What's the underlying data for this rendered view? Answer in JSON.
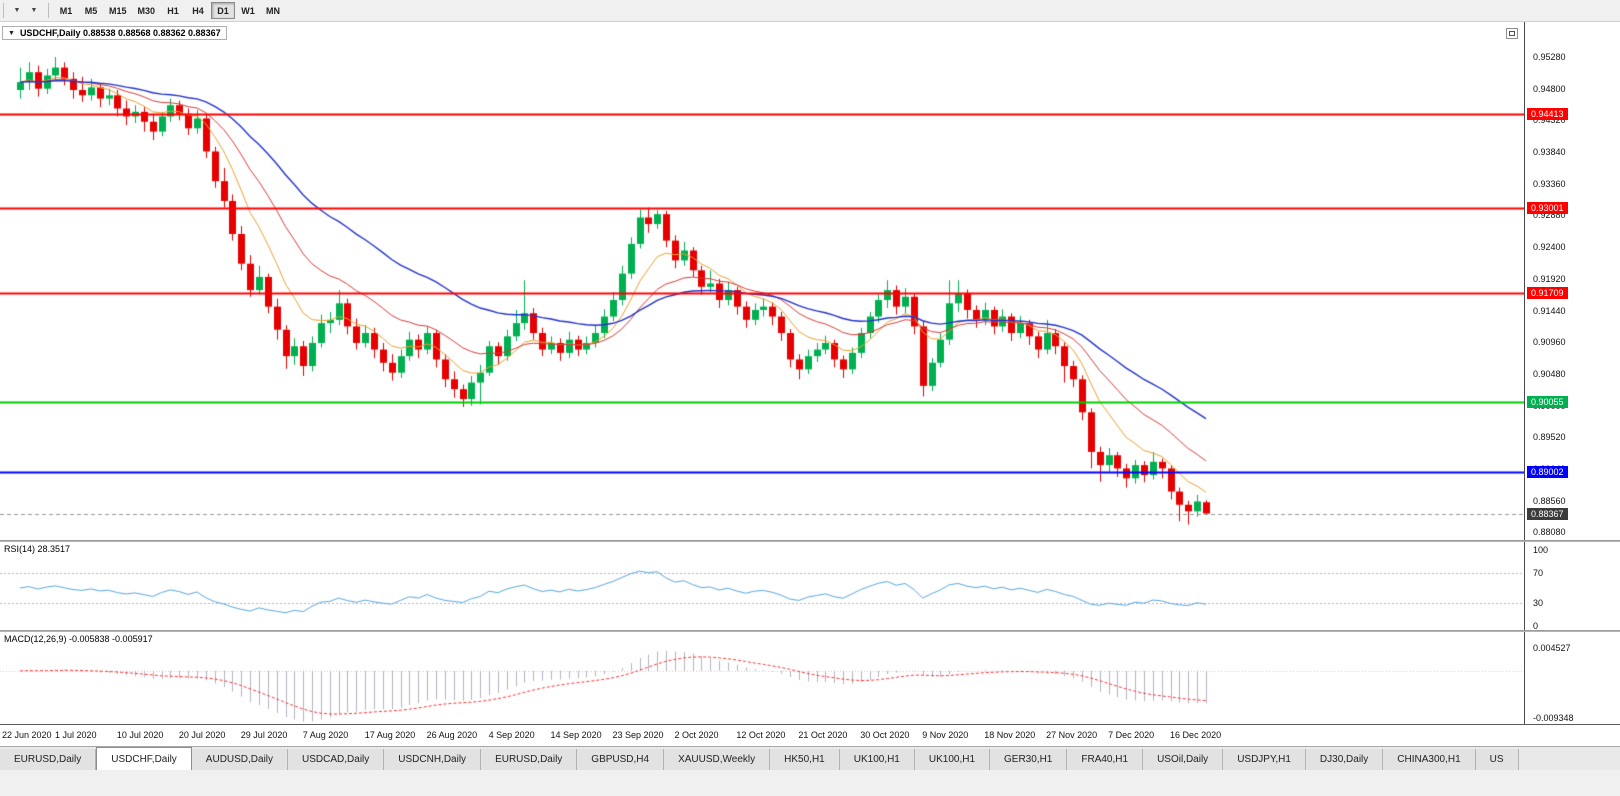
{
  "toolbar": {
    "left_icons": [
      {
        "name": "chart-scroll-icon",
        "glyph": "▼"
      },
      {
        "name": "chart-shift-icon",
        "glyph": "▼"
      }
    ],
    "timeframes": [
      "M1",
      "M5",
      "M15",
      "M30",
      "H1",
      "H4",
      "D1",
      "W1",
      "MN"
    ],
    "active_timeframe": "D1"
  },
  "chart": {
    "one_click_glyph": "▼",
    "title": "USDCHF,Daily 0.88538 0.88568 0.88362 0.88367",
    "symbol": "USDCHF",
    "period": "Daily",
    "ohlc": {
      "open": "0.88538",
      "high": "0.88568",
      "low": "0.88362",
      "close": "0.88367"
    }
  },
  "price_axis": {
    "labels": [
      "0.95280",
      "0.94800",
      "0.94320",
      "0.93840",
      "0.93360",
      "0.92880",
      "0.92400",
      "0.91920",
      "0.91440",
      "0.90960",
      "0.90480",
      "0.90000",
      "0.89520",
      "0.89040",
      "0.88560",
      "0.88080"
    ]
  },
  "price_tags": [
    {
      "name": "resistance-tag-1",
      "text": "0.94413",
      "value": 0.94413,
      "bg": "#ff0000",
      "fg": "#ffffff"
    },
    {
      "name": "resistance-tag-2",
      "text": "0.93001",
      "value": 0.93001,
      "bg": "#ff0000",
      "fg": "#ffffff"
    },
    {
      "name": "resistance-tag-3",
      "text": "0.91709",
      "value": 0.91709,
      "bg": "#ff0000",
      "fg": "#ffffff"
    },
    {
      "name": "support-tag-green",
      "text": "0.90055",
      "value": 0.90055,
      "bg": "#00b050",
      "fg": "#ffffff"
    },
    {
      "name": "support-tag-blue",
      "text": "0.89002",
      "value": 0.89002,
      "bg": "#0000ff",
      "fg": "#ffffff"
    },
    {
      "name": "current-price-tag",
      "text": "0.88367",
      "value": 0.88367,
      "bg": "#3c3c3c",
      "fg": "#ffffff"
    }
  ],
  "hlines": [
    {
      "value": 0.94413,
      "color": "#ff0000",
      "width": 2
    },
    {
      "value": 0.93001,
      "color": "#ff0000",
      "width": 2
    },
    {
      "value": 0.91709,
      "color": "#ff0000",
      "width": 2
    },
    {
      "value": 0.90055,
      "color": "#00cc00",
      "width": 2
    },
    {
      "value": 0.89002,
      "color": "#0000ff",
      "width": 2
    }
  ],
  "current_price": {
    "value": 0.88367,
    "line_color": "#9a9a9a"
  },
  "indicators": {
    "rsi": {
      "label": "RSI(14) 28.3517",
      "value": 28.3517,
      "period": 14,
      "levels": [
        "100",
        "70",
        "30",
        "0"
      ],
      "dashed_levels": [
        70,
        30
      ],
      "line_color": "#58a6dd"
    },
    "macd": {
      "label": "MACD(12,26,9) -0.005838 -0.005917",
      "macd_value": -0.005838,
      "signal_value": -0.005917,
      "fast": 12,
      "slow": 26,
      "signal": 9,
      "scale_top": "0.004527",
      "scale_bottom": "-0.009348",
      "histogram_color": "#b3b3c3",
      "signal_color": "#ff3333"
    }
  },
  "date_axis": {
    "labels": [
      "22 Jun 2020",
      "1 Jul 2020",
      "10 Jul 2020",
      "20 Jul 2020",
      "29 Jul 2020",
      "7 Aug 2020",
      "17 Aug 2020",
      "26 Aug 2020",
      "4 Sep 2020",
      "14 Sep 2020",
      "23 Sep 2020",
      "2 Oct 2020",
      "12 Oct 2020",
      "21 Oct 2020",
      "30 Oct 2020",
      "9 Nov 2020",
      "18 Nov 2020",
      "27 Nov 2020",
      "7 Dec 2020",
      "16 Dec 2020"
    ]
  },
  "chart_data": {
    "type": "candlestick",
    "symbol": "USDCHF",
    "timeframe": "Daily",
    "ylim": [
      0.8808,
      0.9528
    ],
    "bars_per_label": 7,
    "up_color": "#00b050",
    "down_color": "#e60000",
    "ma_lines": [
      {
        "name": "MA-fast-orange",
        "period": 8,
        "method": "ema",
        "color": "#e8a030",
        "width": 1
      },
      {
        "name": "MA-medium-red",
        "period": 17,
        "method": "ema",
        "color": "#d93a3a",
        "width": 1
      },
      {
        "name": "MA-slow-blue",
        "period": 34,
        "method": "ema",
        "color": "#2233cc",
        "width": 1.4
      }
    ],
    "candles": [
      [
        0.9478,
        0.9512,
        0.9465,
        0.949
      ],
      [
        0.949,
        0.952,
        0.9478,
        0.9505
      ],
      [
        0.9505,
        0.9515,
        0.9468,
        0.948
      ],
      [
        0.948,
        0.951,
        0.9472,
        0.95
      ],
      [
        0.95,
        0.9528,
        0.9492,
        0.9512
      ],
      [
        0.9512,
        0.952,
        0.9485,
        0.9495
      ],
      [
        0.9495,
        0.9505,
        0.9465,
        0.9478
      ],
      [
        0.9478,
        0.9498,
        0.946,
        0.947
      ],
      [
        0.947,
        0.9495,
        0.9462,
        0.9482
      ],
      [
        0.9482,
        0.9488,
        0.9452,
        0.9465
      ],
      [
        0.9465,
        0.948,
        0.9455,
        0.947
      ],
      [
        0.947,
        0.9478,
        0.9438,
        0.945
      ],
      [
        0.945,
        0.9462,
        0.9425,
        0.9438
      ],
      [
        0.9438,
        0.9455,
        0.9428,
        0.9445
      ],
      [
        0.9445,
        0.9452,
        0.9415,
        0.943
      ],
      [
        0.943,
        0.9442,
        0.9402,
        0.9415
      ],
      [
        0.9415,
        0.9445,
        0.9408,
        0.9438
      ],
      [
        0.9438,
        0.9465,
        0.943,
        0.9455
      ],
      [
        0.9455,
        0.9462,
        0.9432,
        0.9442
      ],
      [
        0.9442,
        0.945,
        0.941,
        0.942
      ],
      [
        0.942,
        0.9448,
        0.9412,
        0.9435
      ],
      [
        0.9435,
        0.944,
        0.9375,
        0.9385
      ],
      [
        0.9385,
        0.9392,
        0.933,
        0.934
      ],
      [
        0.934,
        0.936,
        0.93,
        0.931
      ],
      [
        0.931,
        0.932,
        0.925,
        0.926
      ],
      [
        0.926,
        0.9272,
        0.9205,
        0.9215
      ],
      [
        0.9215,
        0.9228,
        0.9165,
        0.9175
      ],
      [
        0.9175,
        0.9212,
        0.9168,
        0.9195
      ],
      [
        0.9195,
        0.92,
        0.914,
        0.915
      ],
      [
        0.915,
        0.9162,
        0.91,
        0.9115
      ],
      [
        0.9115,
        0.9122,
        0.9056,
        0.9075
      ],
      [
        0.9075,
        0.9102,
        0.9062,
        0.909
      ],
      [
        0.909,
        0.9098,
        0.9045,
        0.906
      ],
      [
        0.906,
        0.9105,
        0.9052,
        0.9095
      ],
      [
        0.9095,
        0.9138,
        0.9088,
        0.9125
      ],
      [
        0.9125,
        0.9142,
        0.911,
        0.913
      ],
      [
        0.913,
        0.9175,
        0.9122,
        0.9155
      ],
      [
        0.9155,
        0.9162,
        0.9108,
        0.912
      ],
      [
        0.912,
        0.9132,
        0.9085,
        0.9095
      ],
      [
        0.9095,
        0.9122,
        0.9088,
        0.911
      ],
      [
        0.911,
        0.9118,
        0.9072,
        0.9085
      ],
      [
        0.9085,
        0.9095,
        0.9052,
        0.9065
      ],
      [
        0.9065,
        0.9078,
        0.9038,
        0.905
      ],
      [
        0.905,
        0.9085,
        0.9042,
        0.9075
      ],
      [
        0.9075,
        0.9112,
        0.9068,
        0.91
      ],
      [
        0.91,
        0.9108,
        0.9072,
        0.9085
      ],
      [
        0.9085,
        0.912,
        0.9078,
        0.911
      ],
      [
        0.911,
        0.9115,
        0.9058,
        0.907
      ],
      [
        0.907,
        0.9078,
        0.9028,
        0.904
      ],
      [
        0.904,
        0.9052,
        0.9012,
        0.9025
      ],
      [
        0.9025,
        0.9032,
        0.8998,
        0.901
      ],
      [
        0.901,
        0.9045,
        0.9,
        0.9035
      ],
      [
        0.9035,
        0.9062,
        0.9002,
        0.905
      ],
      [
        0.905,
        0.9098,
        0.9045,
        0.909
      ],
      [
        0.909,
        0.9096,
        0.9062,
        0.9075
      ],
      [
        0.9075,
        0.9115,
        0.9068,
        0.9105
      ],
      [
        0.9105,
        0.9145,
        0.9098,
        0.9125
      ],
      [
        0.9125,
        0.919,
        0.9115,
        0.914
      ],
      [
        0.914,
        0.9148,
        0.91,
        0.911
      ],
      [
        0.911,
        0.9118,
        0.9075,
        0.9085
      ],
      [
        0.9085,
        0.9105,
        0.9078,
        0.9095
      ],
      [
        0.9095,
        0.9102,
        0.9068,
        0.908
      ],
      [
        0.908,
        0.9112,
        0.9072,
        0.91
      ],
      [
        0.91,
        0.9106,
        0.9075,
        0.9085
      ],
      [
        0.9085,
        0.9105,
        0.9078,
        0.9095
      ],
      [
        0.9095,
        0.9122,
        0.9088,
        0.911
      ],
      [
        0.911,
        0.9146,
        0.9102,
        0.9135
      ],
      [
        0.9135,
        0.9172,
        0.9128,
        0.916
      ],
      [
        0.916,
        0.9212,
        0.9152,
        0.92
      ],
      [
        0.92,
        0.9255,
        0.9192,
        0.9245
      ],
      [
        0.9245,
        0.9297,
        0.9238,
        0.9285
      ],
      [
        0.9285,
        0.93,
        0.9262,
        0.9275
      ],
      [
        0.9275,
        0.9296,
        0.9268,
        0.929
      ],
      [
        0.929,
        0.9295,
        0.924,
        0.925
      ],
      [
        0.925,
        0.9258,
        0.9208,
        0.922
      ],
      [
        0.922,
        0.9248,
        0.9212,
        0.9235
      ],
      [
        0.9235,
        0.924,
        0.9195,
        0.9205
      ],
      [
        0.9205,
        0.9212,
        0.9168,
        0.918
      ],
      [
        0.918,
        0.9205,
        0.9172,
        0.9185
      ],
      [
        0.9185,
        0.9192,
        0.9148,
        0.916
      ],
      [
        0.916,
        0.9188,
        0.9152,
        0.9175
      ],
      [
        0.9175,
        0.918,
        0.9138,
        0.915
      ],
      [
        0.915,
        0.9158,
        0.9118,
        0.913
      ],
      [
        0.913,
        0.9155,
        0.9122,
        0.9145
      ],
      [
        0.9145,
        0.9162,
        0.9135,
        0.915
      ],
      [
        0.915,
        0.9156,
        0.9122,
        0.9135
      ],
      [
        0.9135,
        0.9142,
        0.9098,
        0.911
      ],
      [
        0.911,
        0.9116,
        0.9058,
        0.907
      ],
      [
        0.907,
        0.9078,
        0.904,
        0.9055
      ],
      [
        0.9055,
        0.9085,
        0.9048,
        0.9075
      ],
      [
        0.9075,
        0.9095,
        0.9066,
        0.9085
      ],
      [
        0.9085,
        0.9106,
        0.9078,
        0.9095
      ],
      [
        0.9095,
        0.91,
        0.9058,
        0.907
      ],
      [
        0.907,
        0.9076,
        0.9042,
        0.9055
      ],
      [
        0.9055,
        0.9088,
        0.9048,
        0.908
      ],
      [
        0.908,
        0.9118,
        0.9072,
        0.911
      ],
      [
        0.911,
        0.9142,
        0.9102,
        0.9135
      ],
      [
        0.9135,
        0.9168,
        0.9126,
        0.916
      ],
      [
        0.916,
        0.919,
        0.9148,
        0.9175
      ],
      [
        0.9175,
        0.9182,
        0.9138,
        0.915
      ],
      [
        0.915,
        0.9178,
        0.914,
        0.9165
      ],
      [
        0.9165,
        0.917,
        0.9108,
        0.912
      ],
      [
        0.912,
        0.9128,
        0.9014,
        0.903
      ],
      [
        0.903,
        0.9072,
        0.9022,
        0.9065
      ],
      [
        0.9065,
        0.911,
        0.9058,
        0.91
      ],
      [
        0.91,
        0.919,
        0.9092,
        0.9155
      ],
      [
        0.9155,
        0.919,
        0.9142,
        0.917
      ],
      [
        0.917,
        0.9176,
        0.9132,
        0.9145
      ],
      [
        0.9145,
        0.9152,
        0.9118,
        0.913
      ],
      [
        0.913,
        0.9156,
        0.9122,
        0.9145
      ],
      [
        0.9145,
        0.915,
        0.9108,
        0.912
      ],
      [
        0.912,
        0.9146,
        0.9112,
        0.9135
      ],
      [
        0.9135,
        0.914,
        0.9098,
        0.911
      ],
      [
        0.911,
        0.9136,
        0.9102,
        0.9125
      ],
      [
        0.9125,
        0.913,
        0.9092,
        0.9105
      ],
      [
        0.9105,
        0.9112,
        0.9072,
        0.9085
      ],
      [
        0.9085,
        0.913,
        0.9078,
        0.911
      ],
      [
        0.911,
        0.9116,
        0.9078,
        0.909
      ],
      [
        0.909,
        0.9096,
        0.9035,
        0.906
      ],
      [
        0.906,
        0.9068,
        0.9028,
        0.904
      ],
      [
        0.904,
        0.9046,
        0.8978,
        0.899
      ],
      [
        0.899,
        0.8996,
        0.8905,
        0.893
      ],
      [
        0.893,
        0.8938,
        0.8885,
        0.891
      ],
      [
        0.891,
        0.8936,
        0.89,
        0.8925
      ],
      [
        0.8925,
        0.893,
        0.8892,
        0.8905
      ],
      [
        0.8905,
        0.8912,
        0.8876,
        0.889
      ],
      [
        0.889,
        0.8918,
        0.8882,
        0.891
      ],
      [
        0.891,
        0.8916,
        0.8884,
        0.8895
      ],
      [
        0.8895,
        0.893,
        0.8888,
        0.8915
      ],
      [
        0.8915,
        0.892,
        0.889,
        0.8905
      ],
      [
        0.8905,
        0.891,
        0.8858,
        0.887
      ],
      [
        0.887,
        0.8876,
        0.8825,
        0.885
      ],
      [
        0.885,
        0.8856,
        0.882,
        0.884
      ],
      [
        0.884,
        0.8865,
        0.8832,
        0.8855
      ],
      [
        0.88538,
        0.88568,
        0.88362,
        0.88367
      ]
    ]
  },
  "bottom_tabs": {
    "active_index": 1,
    "tabs": [
      "EURUSD,Daily",
      "USDCHF,Daily",
      "AUDUSD,Daily",
      "USDCAD,Daily",
      "USDCNH,Daily",
      "EURUSD,Daily",
      "GBPUSD,H4",
      "XAUUSD,Weekly",
      "HK50,H1",
      "UK100,H1",
      "UK100,H1",
      "GER30,H1",
      "FRA40,H1",
      "USOil,Daily",
      "USDJPY,H1",
      "DJ30,Daily",
      "CHINA300,H1",
      "US"
    ]
  }
}
